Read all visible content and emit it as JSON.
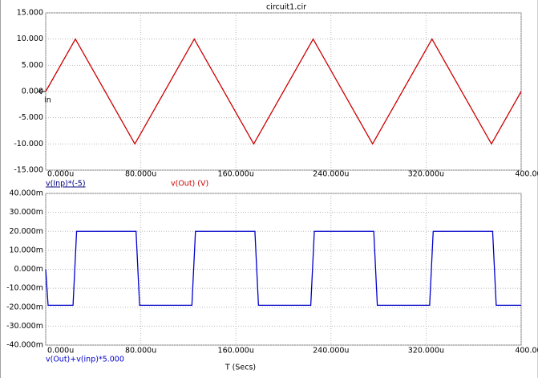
{
  "chart_data": [
    {
      "type": "line",
      "title": "circuit1.cir",
      "annotations": [
        "v(Inp)*(-5)",
        "In"
      ],
      "x": [
        0,
        25,
        75,
        125,
        175,
        225,
        275,
        325,
        375,
        400
      ],
      "series": [
        {
          "name": "v(Out) (V)",
          "color": "#cc0000",
          "values": [
            0,
            10,
            -10,
            10,
            -10,
            10,
            -10,
            10,
            -10,
            0
          ]
        }
      ],
      "xlim": [
        0,
        400
      ],
      "xticks": [
        {
          "value": 0,
          "label": "0.000u"
        },
        {
          "value": 80,
          "label": "80.000u"
        },
        {
          "value": 160,
          "label": "160.000u"
        },
        {
          "value": 240,
          "label": "240.000u"
        },
        {
          "value": 320,
          "label": "320.000u"
        },
        {
          "value": 400,
          "label": "400.000u"
        }
      ],
      "ylim": [
        -15,
        15
      ],
      "yticks": [
        {
          "value": 15,
          "label": "15.000"
        },
        {
          "value": 10,
          "label": "10.000"
        },
        {
          "value": 5,
          "label": "5.000"
        },
        {
          "value": 0,
          "label": "0.000"
        },
        {
          "value": -5,
          "label": "-5.000"
        },
        {
          "value": -10,
          "label": "-10.000"
        },
        {
          "value": -15,
          "label": "-15.000"
        }
      ],
      "grid": true
    },
    {
      "type": "line",
      "xlabel": "T (Secs)",
      "x": [
        0,
        2,
        23,
        26,
        76,
        79,
        123,
        126,
        176,
        179,
        223,
        226,
        276,
        279,
        323,
        326,
        376,
        379,
        400
      ],
      "series": [
        {
          "name": "v(Out)+v(inp)*5.000",
          "color": "#0000cc",
          "values": [
            0,
            -19,
            -19,
            20,
            20,
            -19,
            -19,
            20,
            20,
            -19,
            -19,
            20,
            20,
            -19,
            -19,
            20,
            20,
            -19,
            -19
          ]
        }
      ],
      "xlim": [
        0,
        400
      ],
      "xticks": [
        {
          "value": 0,
          "label": "0.000u"
        },
        {
          "value": 80,
          "label": "80.000u"
        },
        {
          "value": 160,
          "label": "160.000u"
        },
        {
          "value": 240,
          "label": "240.000u"
        },
        {
          "value": 320,
          "label": "320.000u"
        },
        {
          "value": 400,
          "label": "400.000u"
        }
      ],
      "ylim": [
        -40,
        40
      ],
      "yticks": [
        {
          "value": 40,
          "label": "40.000m"
        },
        {
          "value": 30,
          "label": "30.000m"
        },
        {
          "value": 20,
          "label": "20.000m"
        },
        {
          "value": 10,
          "label": "10.000m"
        },
        {
          "value": 0,
          "label": "0.000m"
        },
        {
          "value": -10,
          "label": "-10.000m"
        },
        {
          "value": -20,
          "label": "-20.000m"
        },
        {
          "value": -30,
          "label": "-30.000m"
        },
        {
          "value": -40,
          "label": "-40.000m"
        }
      ],
      "grid": true
    }
  ]
}
